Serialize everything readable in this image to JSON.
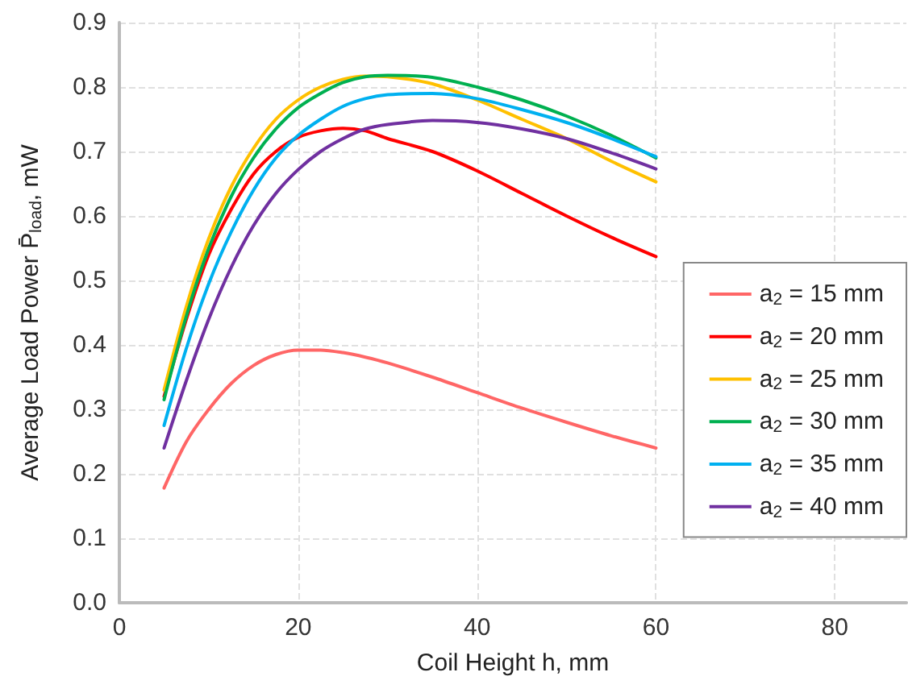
{
  "chart_data": {
    "type": "line",
    "xlabel": "Coil Height h, mm",
    "ylabel": "Average Load Power P̄$_{load}$, mW",
    "x": [
      5,
      7.5,
      10,
      12.5,
      15,
      17.5,
      20,
      22.5,
      25,
      27.5,
      30,
      35,
      40,
      45,
      50,
      55,
      60
    ],
    "xlim": [
      0,
      88
    ],
    "xticks": [
      0,
      20,
      40,
      60,
      80
    ],
    "ylim": [
      0,
      0.9
    ],
    "yticks": [
      {
        "value": 0,
        "label": "0.0"
      },
      0.1,
      0.2,
      0.3,
      0.4,
      0.5,
      0.6,
      0.7,
      0.8,
      0.9
    ],
    "grid": true,
    "legend": "right",
    "marker": "none",
    "line_style": "solid",
    "series": [
      {
        "name": "a$_{2}$ = 15 mm",
        "color": "#ff6666",
        "values": [
          0.178,
          0.25,
          0.3,
          0.34,
          0.368,
          0.385,
          0.392,
          0.392,
          0.388,
          0.381,
          0.372,
          0.35,
          0.326,
          0.302,
          0.28,
          0.259,
          0.24
        ]
      },
      {
        "name": "a$_{2}$ = 20 mm",
        "color": "#ff0000",
        "values": [
          0.32,
          0.44,
          0.54,
          0.61,
          0.665,
          0.7,
          0.722,
          0.732,
          0.736,
          0.732,
          0.72,
          0.7,
          0.67,
          0.635,
          0.6,
          0.567,
          0.537
        ]
      },
      {
        "name": "a$_{2}$ = 25 mm",
        "color": "#ffc000",
        "values": [
          0.33,
          0.46,
          0.565,
          0.645,
          0.705,
          0.75,
          0.78,
          0.8,
          0.812,
          0.817,
          0.816,
          0.805,
          0.78,
          0.75,
          0.72,
          0.685,
          0.653
        ]
      },
      {
        "name": "a$_{2}$ = 30 mm",
        "color": "#00b050",
        "values": [
          0.315,
          0.445,
          0.55,
          0.63,
          0.69,
          0.735,
          0.768,
          0.79,
          0.807,
          0.816,
          0.818,
          0.815,
          0.8,
          0.78,
          0.755,
          0.725,
          0.69
        ]
      },
      {
        "name": "a$_{2}$ = 35 mm",
        "color": "#00b0f0",
        "values": [
          0.275,
          0.395,
          0.495,
          0.575,
          0.64,
          0.69,
          0.725,
          0.75,
          0.77,
          0.782,
          0.788,
          0.79,
          0.782,
          0.765,
          0.745,
          0.72,
          0.692
        ]
      },
      {
        "name": "a$_{2}$ = 40 mm",
        "color": "#7030a0",
        "values": [
          0.24,
          0.345,
          0.44,
          0.52,
          0.585,
          0.635,
          0.672,
          0.7,
          0.72,
          0.735,
          0.742,
          0.748,
          0.745,
          0.735,
          0.72,
          0.698,
          0.673
        ]
      }
    ]
  }
}
